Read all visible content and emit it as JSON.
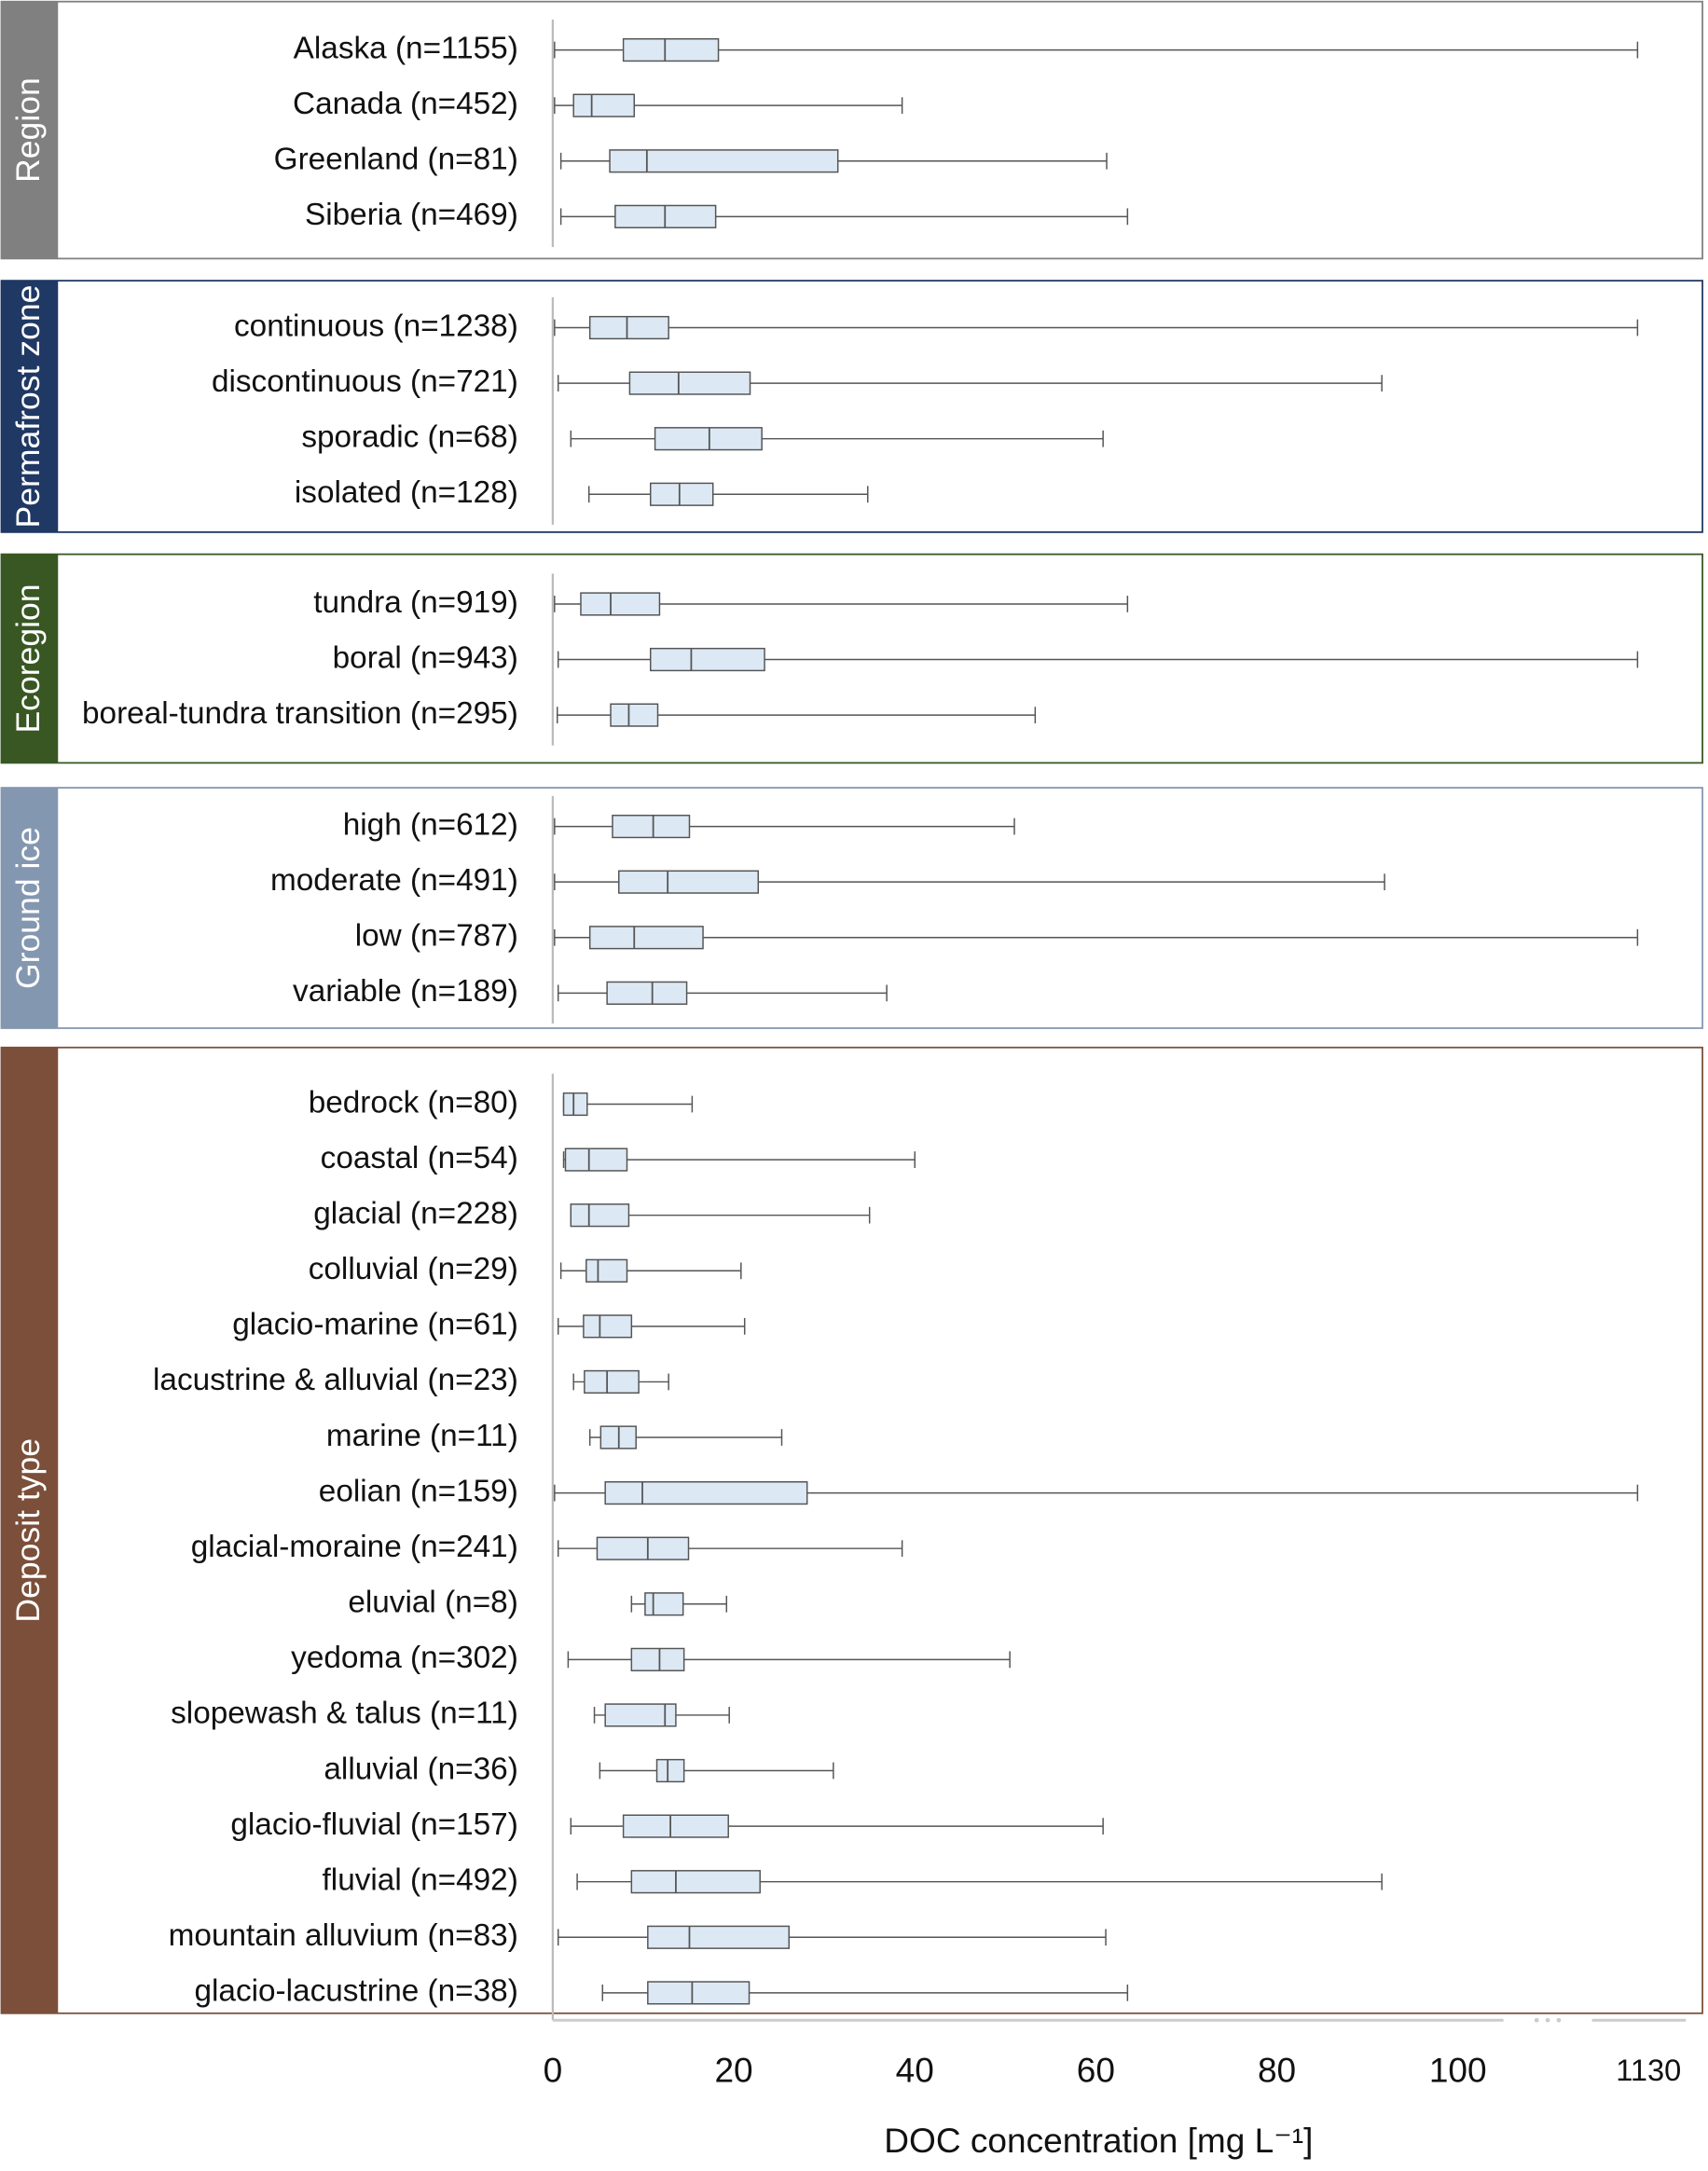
{
  "chart_data": {
    "type": "box",
    "xlabel": "DOC concentration [mg L⁻¹]",
    "xlim": [
      0,
      1130
    ],
    "xticks": [
      0,
      20,
      40,
      60,
      80,
      100,
      1130
    ],
    "box_color": "#dce9f5",
    "groups": [
      {
        "name": "Region",
        "color": "#808080",
        "categories": [
          "Alaska (n=1155)",
          "Canada (n=452)",
          "Greenland (n=81)",
          "Siberia (n=469)"
        ],
        "min": [
          0.2,
          0.2,
          0.9,
          0.9
        ],
        "q1": [
          7.8,
          2.3,
          6.3,
          6.9
        ],
        "median": [
          12.4,
          4.3,
          10.4,
          12.4
        ],
        "q3": [
          18.3,
          9.0,
          31.5,
          18.0
        ],
        "max": [
          1130,
          38.6,
          61.2,
          63.5
        ]
      },
      {
        "name": "Permafrost zone",
        "color": "#1f3864",
        "categories": [
          "continuous (n=1238)",
          "discontinuous (n=721)",
          "sporadic (n=68)",
          "isolated (n=128)"
        ],
        "min": [
          0.2,
          0.6,
          2.0,
          4.0
        ],
        "q1": [
          4.1,
          8.5,
          11.3,
          10.8
        ],
        "median": [
          8.2,
          13.9,
          17.3,
          14.0
        ],
        "q3": [
          12.8,
          21.8,
          23.1,
          17.7
        ],
        "max": [
          1130,
          91.6,
          60.8,
          34.8
        ]
      },
      {
        "name": "Ecoregion",
        "color": "#385723",
        "categories": [
          "tundra (n=919)",
          "boral (n=943)",
          "boreal-tundra transition (n=295)"
        ],
        "min": [
          0.2,
          0.6,
          0.5
        ],
        "q1": [
          3.1,
          10.8,
          6.4
        ],
        "median": [
          6.4,
          15.3,
          8.4
        ],
        "q3": [
          11.8,
          23.4,
          11.6
        ],
        "max": [
          63.5,
          1130,
          53.3
        ]
      },
      {
        "name": "Ground ice",
        "color": "#8497b0",
        "categories": [
          "high (n=612)",
          "moderate (n=491)",
          "low (n=787)",
          "variable (n=189)"
        ],
        "min": [
          0.2,
          0.2,
          0.2,
          0.6
        ],
        "q1": [
          6.6,
          7.3,
          4.1,
          6.0
        ],
        "median": [
          11.1,
          12.7,
          9.0,
          11.0
        ],
        "q3": [
          15.1,
          22.7,
          16.6,
          14.8
        ],
        "max": [
          51.0,
          91.9,
          1130,
          36.9
        ]
      },
      {
        "name": "Deposit type",
        "color": "#7b4f3a",
        "categories": [
          "bedrock (n=80)",
          "coastal (n=54)",
          "glacial (n=228)",
          "colluvial (n=29)",
          "glacio-marine (n=61)",
          "lacustrine & alluvial (n=23)",
          "marine (n=11)",
          "eolian (n=159)",
          "glacial-moraine (n=241)",
          "eluvial (n=8)",
          "yedoma (n=302)",
          "slopewash & talus (n=11)",
          "alluvial (n=36)",
          "glacio-fluvial (n=157)",
          "fluvial (n=492)",
          "mountain alluvium (n=83)",
          "glacio-lacustrine (n=38)"
        ],
        "min": [
          1.2,
          1.2,
          2.0,
          0.9,
          0.6,
          2.3,
          4.1,
          0.2,
          0.6,
          8.7,
          1.7,
          4.6,
          5.2,
          2.0,
          2.7,
          0.6,
          5.5
        ],
        "q1": [
          1.2,
          1.4,
          2.0,
          3.7,
          3.4,
          3.5,
          5.3,
          5.8,
          4.9,
          10.2,
          8.7,
          5.8,
          11.5,
          7.8,
          8.7,
          10.5,
          10.5
        ],
        "median": [
          2.3,
          4.0,
          4.0,
          5.0,
          5.2,
          6.0,
          7.3,
          9.9,
          10.5,
          11.1,
          11.8,
          12.4,
          12.7,
          13.0,
          13.6,
          15.1,
          15.4
        ],
        "q3": [
          3.8,
          8.2,
          8.4,
          8.2,
          8.7,
          9.5,
          9.2,
          28.1,
          15.0,
          14.4,
          14.5,
          13.6,
          14.5,
          19.4,
          22.9,
          26.1,
          21.7
        ],
        "max": [
          15.4,
          40.0,
          35.0,
          20.8,
          21.2,
          12.8,
          25.3,
          1130,
          38.6,
          19.2,
          50.5,
          19.5,
          31.0,
          60.8,
          91.6,
          61.1,
          63.5
        ]
      }
    ]
  }
}
